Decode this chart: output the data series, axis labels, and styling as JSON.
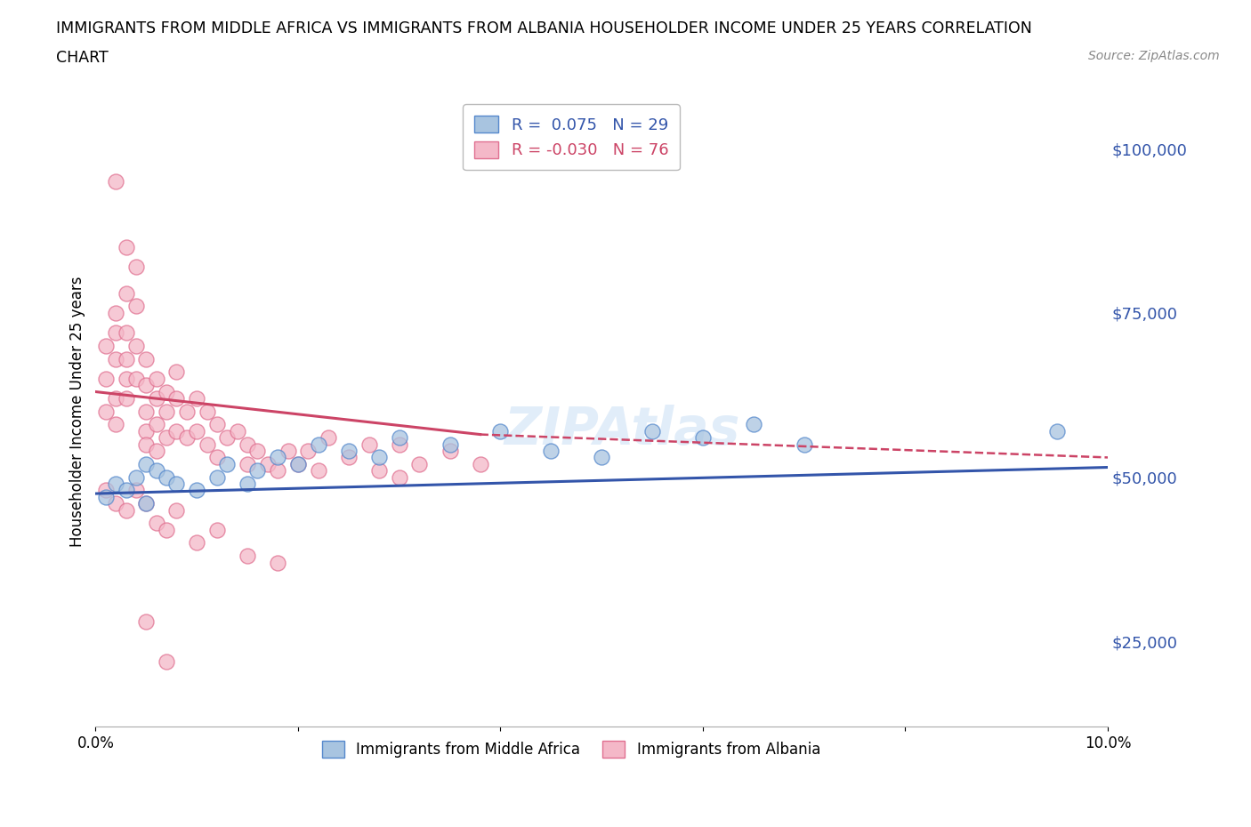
{
  "title_line1": "IMMIGRANTS FROM MIDDLE AFRICA VS IMMIGRANTS FROM ALBANIA HOUSEHOLDER INCOME UNDER 25 YEARS CORRELATION",
  "title_line2": "CHART",
  "source": "Source: ZipAtlas.com",
  "ylabel": "Householder Income Under 25 years",
  "xlim": [
    0.0,
    0.1
  ],
  "ylim": [
    12000,
    108000
  ],
  "yticks": [
    25000,
    50000,
    75000,
    100000
  ],
  "ytick_labels": [
    "$25,000",
    "$50,000",
    "$75,000",
    "$100,000"
  ],
  "xticks": [
    0.0,
    0.02,
    0.04,
    0.06,
    0.08,
    0.1
  ],
  "xtick_labels": [
    "0.0%",
    "",
    "",
    "",
    "",
    "10.0%"
  ],
  "color_blue": "#A8C4E0",
  "color_pink": "#F4B8C8",
  "edge_blue": "#5588CC",
  "edge_pink": "#E07090",
  "line_blue": "#3355AA",
  "line_pink": "#CC4466",
  "background": "#FFFFFF",
  "grid_color": "#DDDDDD",
  "blue_scatter_x": [
    0.001,
    0.002,
    0.003,
    0.004,
    0.005,
    0.005,
    0.006,
    0.007,
    0.008,
    0.01,
    0.012,
    0.013,
    0.015,
    0.016,
    0.018,
    0.02,
    0.022,
    0.025,
    0.028,
    0.03,
    0.035,
    0.04,
    0.045,
    0.05,
    0.055,
    0.06,
    0.065,
    0.07,
    0.095
  ],
  "blue_scatter_y": [
    47000,
    49000,
    48000,
    50000,
    46000,
    52000,
    51000,
    50000,
    49000,
    48000,
    50000,
    52000,
    49000,
    51000,
    53000,
    52000,
    55000,
    54000,
    53000,
    56000,
    55000,
    57000,
    54000,
    53000,
    57000,
    56000,
    58000,
    55000,
    57000
  ],
  "pink_scatter_x": [
    0.001,
    0.001,
    0.001,
    0.002,
    0.002,
    0.002,
    0.002,
    0.002,
    0.003,
    0.003,
    0.003,
    0.003,
    0.003,
    0.004,
    0.004,
    0.004,
    0.004,
    0.005,
    0.005,
    0.005,
    0.005,
    0.005,
    0.006,
    0.006,
    0.006,
    0.006,
    0.007,
    0.007,
    0.007,
    0.008,
    0.008,
    0.008,
    0.009,
    0.009,
    0.01,
    0.01,
    0.011,
    0.011,
    0.012,
    0.012,
    0.013,
    0.014,
    0.015,
    0.015,
    0.016,
    0.017,
    0.018,
    0.019,
    0.02,
    0.021,
    0.022,
    0.023,
    0.025,
    0.027,
    0.028,
    0.03,
    0.03,
    0.032,
    0.035,
    0.038,
    0.001,
    0.002,
    0.003,
    0.004,
    0.005,
    0.006,
    0.007,
    0.008,
    0.01,
    0.012,
    0.015,
    0.018,
    0.002,
    0.003,
    0.005,
    0.007
  ],
  "pink_scatter_y": [
    65000,
    70000,
    60000,
    72000,
    75000,
    68000,
    62000,
    58000,
    78000,
    72000,
    68000,
    65000,
    62000,
    82000,
    76000,
    70000,
    65000,
    68000,
    64000,
    60000,
    57000,
    55000,
    65000,
    62000,
    58000,
    54000,
    63000,
    60000,
    56000,
    66000,
    62000,
    57000,
    60000,
    56000,
    62000,
    57000,
    60000,
    55000,
    58000,
    53000,
    56000,
    57000,
    55000,
    52000,
    54000,
    52000,
    51000,
    54000,
    52000,
    54000,
    51000,
    56000,
    53000,
    55000,
    51000,
    55000,
    50000,
    52000,
    54000,
    52000,
    48000,
    46000,
    45000,
    48000,
    46000,
    43000,
    42000,
    45000,
    40000,
    42000,
    38000,
    37000,
    95000,
    85000,
    28000,
    22000
  ],
  "blue_trend": [
    0.0,
    0.1,
    47500,
    51500
  ],
  "pink_solid": [
    0.0,
    0.038,
    63000,
    56500
  ],
  "pink_dash": [
    0.038,
    0.1,
    56500,
    53000
  ]
}
